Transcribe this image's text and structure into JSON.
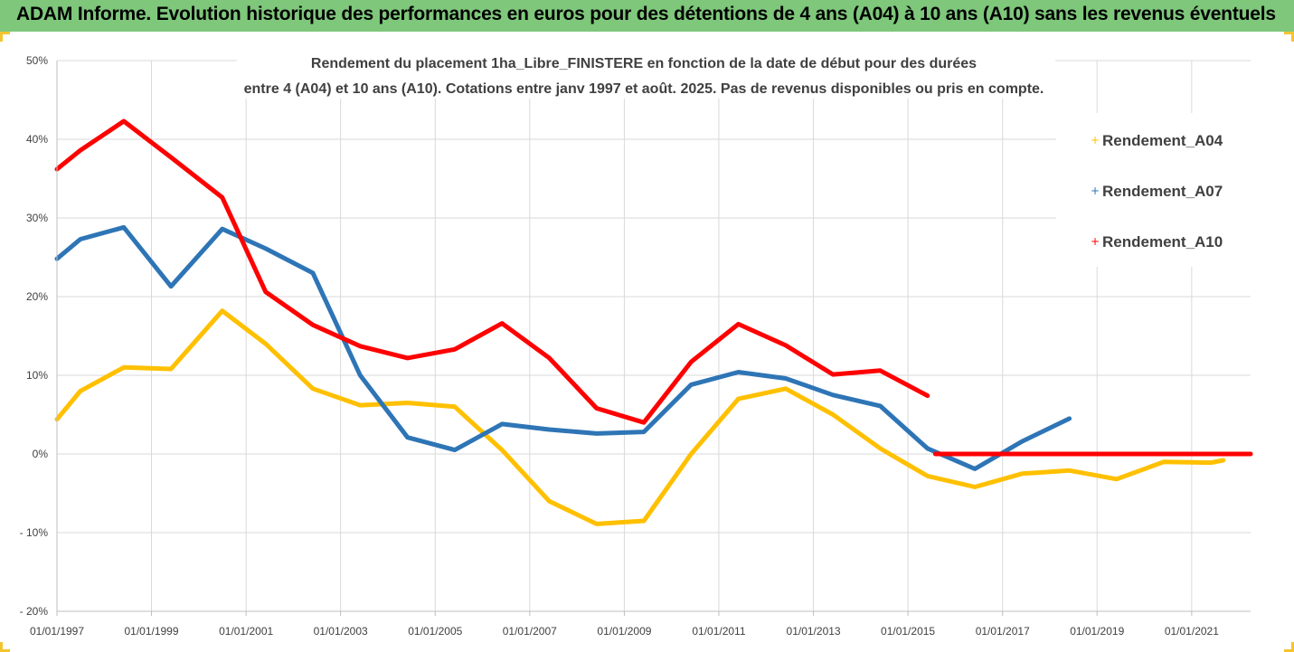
{
  "header": {
    "title": "ADAM Informe. Evolution historique des performances en euros pour des détentions de 4 ans (A04) à 10 ans (A10) sans les revenus éventuels"
  },
  "colors": {
    "banner": "#7ec77b",
    "frame": "#f4c430",
    "grid": "#d9d9d9",
    "text": "#404040"
  },
  "chart_data": {
    "type": "line",
    "title_lines": [
      "Rendement du placement 1ha_Libre_FINISTERE en fonction de la date de début pour des durées",
      "entre 4 (A04) et 10 ans (A10). Cotations entre janv 1997 et août. 2025. Pas de revenus disponibles ou pris en compte."
    ],
    "xlabel": "",
    "ylabel": "",
    "xlim": [
      "1997-01-01",
      "2022-04-01"
    ],
    "ylim": [
      -20,
      50
    ],
    "y_unit": "%",
    "y_ticks": [
      {
        "value": 50,
        "label": "50%"
      },
      {
        "value": 40,
        "label": "40%"
      },
      {
        "value": 30,
        "label": "30%"
      },
      {
        "value": 20,
        "label": "20%"
      },
      {
        "value": 10,
        "label": "10%"
      },
      {
        "value": 0,
        "label": "0%"
      },
      {
        "value": -10,
        "label": "- 10%"
      },
      {
        "value": -20,
        "label": "- 20%"
      }
    ],
    "x_ticks": [
      {
        "date": "1997-01-01",
        "label": "01/01/1997"
      },
      {
        "date": "1999-01-01",
        "label": "01/01/1999"
      },
      {
        "date": "2001-01-01",
        "label": "01/01/2001"
      },
      {
        "date": "2003-01-01",
        "label": "01/01/2003"
      },
      {
        "date": "2005-01-01",
        "label": "01/01/2005"
      },
      {
        "date": "2007-01-01",
        "label": "01/01/2007"
      },
      {
        "date": "2009-01-01",
        "label": "01/01/2009"
      },
      {
        "date": "2011-01-01",
        "label": "01/01/2011"
      },
      {
        "date": "2013-01-01",
        "label": "01/01/2013"
      },
      {
        "date": "2015-01-01",
        "label": "01/01/2015"
      },
      {
        "date": "2017-01-01",
        "label": "01/01/2017"
      },
      {
        "date": "2019-01-01",
        "label": "01/01/2019"
      },
      {
        "date": "2021-01-01",
        "label": "01/01/2021"
      }
    ],
    "grid": true,
    "legend_position": "right",
    "series": [
      {
        "name": "Rendement_A04",
        "color": "#ffc000",
        "points": [
          [
            "1997-01-01",
            4.4
          ],
          [
            "1997-07-01",
            8.0
          ],
          [
            "1998-06-01",
            11.0
          ],
          [
            "1999-06-01",
            10.8
          ],
          [
            "2000-07-01",
            18.2
          ],
          [
            "2001-06-01",
            14.0
          ],
          [
            "2002-06-01",
            8.3
          ],
          [
            "2003-06-01",
            6.2
          ],
          [
            "2004-06-01",
            6.5
          ],
          [
            "2005-06-01",
            6.0
          ],
          [
            "2006-06-01",
            0.5
          ],
          [
            "2007-06-01",
            -6.0
          ],
          [
            "2008-06-01",
            -8.9
          ],
          [
            "2009-06-01",
            -8.5
          ],
          [
            "2010-06-01",
            0.0
          ],
          [
            "2011-06-01",
            7.0
          ],
          [
            "2012-06-01",
            8.3
          ],
          [
            "2013-06-01",
            5.0
          ],
          [
            "2014-06-01",
            0.7
          ],
          [
            "2015-06-01",
            -2.8
          ],
          [
            "2016-06-01",
            -4.2
          ],
          [
            "2017-06-01",
            -2.5
          ],
          [
            "2018-06-01",
            -2.1
          ],
          [
            "2019-06-01",
            -3.2
          ],
          [
            "2020-06-01",
            -1.0
          ],
          [
            "2021-06-01",
            -1.1
          ],
          [
            "2021-09-01",
            -0.8
          ]
        ]
      },
      {
        "name": "Rendement_A07",
        "color": "#2e75b6",
        "points": [
          [
            "1997-01-01",
            24.8
          ],
          [
            "1997-07-01",
            27.3
          ],
          [
            "1998-06-01",
            28.8
          ],
          [
            "1999-06-01",
            21.3
          ],
          [
            "2000-07-01",
            28.6
          ],
          [
            "2001-06-01",
            26.1
          ],
          [
            "2002-06-01",
            23.0
          ],
          [
            "2003-06-01",
            10.0
          ],
          [
            "2004-06-01",
            2.1
          ],
          [
            "2005-06-01",
            0.5
          ],
          [
            "2006-06-01",
            3.8
          ],
          [
            "2007-06-01",
            3.1
          ],
          [
            "2008-06-01",
            2.6
          ],
          [
            "2009-06-01",
            2.8
          ],
          [
            "2010-06-01",
            8.8
          ],
          [
            "2011-06-01",
            10.4
          ],
          [
            "2012-06-01",
            9.6
          ],
          [
            "2013-06-01",
            7.5
          ],
          [
            "2014-06-01",
            6.1
          ],
          [
            "2015-06-01",
            0.7
          ],
          [
            "2016-06-01",
            -1.9
          ],
          [
            "2017-06-01",
            1.6
          ],
          [
            "2018-06-01",
            4.5
          ]
        ]
      },
      {
        "name": "Rendement_A10",
        "color": "#ff0000",
        "points": [
          [
            "1997-01-01",
            36.2
          ],
          [
            "1997-07-01",
            38.6
          ],
          [
            "1998-06-01",
            42.3
          ],
          [
            "1999-06-01",
            37.7
          ],
          [
            "2000-07-01",
            32.6
          ],
          [
            "2001-06-01",
            20.6
          ],
          [
            "2002-06-01",
            16.4
          ],
          [
            "2003-06-01",
            13.7
          ],
          [
            "2004-06-01",
            12.2
          ],
          [
            "2005-06-01",
            13.3
          ],
          [
            "2006-06-01",
            16.6
          ],
          [
            "2007-06-01",
            12.2
          ],
          [
            "2008-06-01",
            5.8
          ],
          [
            "2009-06-01",
            4.0
          ],
          [
            "2010-06-01",
            11.7
          ],
          [
            "2011-06-01",
            16.5
          ],
          [
            "2012-06-01",
            13.8
          ],
          [
            "2013-06-01",
            10.1
          ],
          [
            "2014-06-01",
            10.6
          ],
          [
            "2015-06-01",
            7.4
          ]
        ]
      },
      {
        "name": "",
        "color": "#ff0000",
        "points": [
          [
            "2015-08-01",
            0.0
          ],
          [
            "2022-04-01",
            0.0
          ]
        ]
      }
    ]
  }
}
